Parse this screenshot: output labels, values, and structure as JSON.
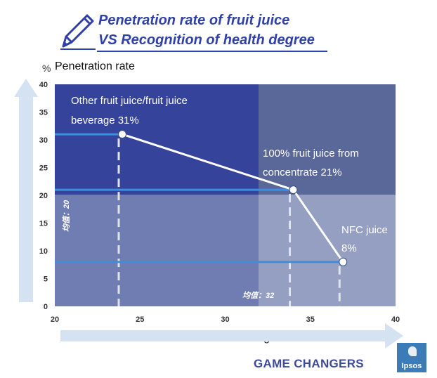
{
  "title": {
    "line1": "Penetration rate of fruit juice",
    "line2": "VS Recognition of health degree"
  },
  "footer": {
    "brand_text": "GAME CHANGERS",
    "logo_text": "Ipsos"
  },
  "colors": {
    "title": "#2f40a8",
    "quadrant_top_left": "#35449a",
    "quadrant_top_right": "#5a6799",
    "quadrant_bottom_left": "#6f7db2",
    "quadrant_bottom_right": "#959fc1",
    "guide_line": "#3a8fe0",
    "trend_line": "#ffffff",
    "dashed_line": "#dfe3ea",
    "arrow": "#d5e2f2"
  },
  "chart_data": {
    "type": "line",
    "ylabel_unit": "%",
    "ylabel": "Penetration rate",
    "xlabel": "Health Degree",
    "xlim": [
      20,
      40
    ],
    "ylim": [
      0,
      40
    ],
    "x_ticks": [
      "20",
      "25",
      "30",
      "35",
      "40"
    ],
    "y_ticks": [
      "0",
      "5",
      "10",
      "15",
      "20",
      "25",
      "30",
      "35",
      "40"
    ],
    "reference_lines": {
      "x_mean": 32,
      "y_mean": 20,
      "x_mean_label": "均值：32",
      "y_mean_label": "均值：20"
    },
    "points": [
      {
        "x": 24,
        "y": 31,
        "label_line1": "Other fruit juice/fruit juice",
        "label_line2": "beverage 31%"
      },
      {
        "x": 34,
        "y": 21,
        "label_line1": "100% fruit juice from",
        "label_line2": "concentrate 21%"
      },
      {
        "x": 37,
        "y": 8,
        "label_line1": "NFC juice",
        "label_line2": "8%"
      }
    ],
    "grid": false
  }
}
